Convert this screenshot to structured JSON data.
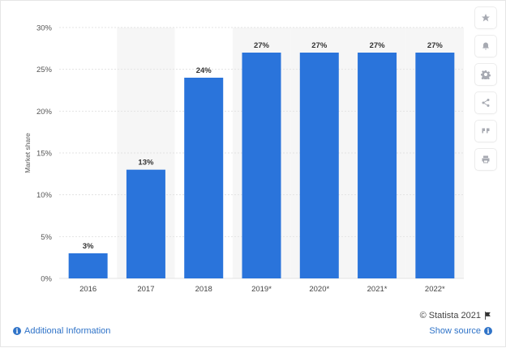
{
  "chart_data": {
    "type": "bar",
    "categories": [
      "2016",
      "2017",
      "2018",
      "2019*",
      "2020*",
      "2021*",
      "2022*"
    ],
    "values": [
      3,
      13,
      24,
      27,
      27,
      27,
      27
    ],
    "value_labels": [
      "3%",
      "13%",
      "24%",
      "27%",
      "27%",
      "27%",
      "27%"
    ],
    "ylabel": "Market share",
    "ylim": [
      0,
      30
    ],
    "yticks": [
      "0%",
      "5%",
      "10%",
      "15%",
      "20%",
      "25%",
      "30%"
    ],
    "ytick_values": [
      0,
      5,
      10,
      15,
      20,
      25,
      30
    ],
    "highlighted_columns": [
      "2017",
      "2019*",
      "2020*",
      "2021*",
      "2022*"
    ],
    "grid": true
  },
  "colors": {
    "bar": "#2a74db",
    "band": "#f6f6f6",
    "grid": "#e3e3e3",
    "link": "#2f73c8"
  },
  "toolbar": {
    "icons": [
      "star-icon",
      "bell-icon",
      "gear-icon",
      "share-icon",
      "quote-icon",
      "print-icon"
    ]
  },
  "footer": {
    "copyright": "© Statista 2021",
    "additional_info": "Additional Information",
    "show_source": "Show source"
  }
}
